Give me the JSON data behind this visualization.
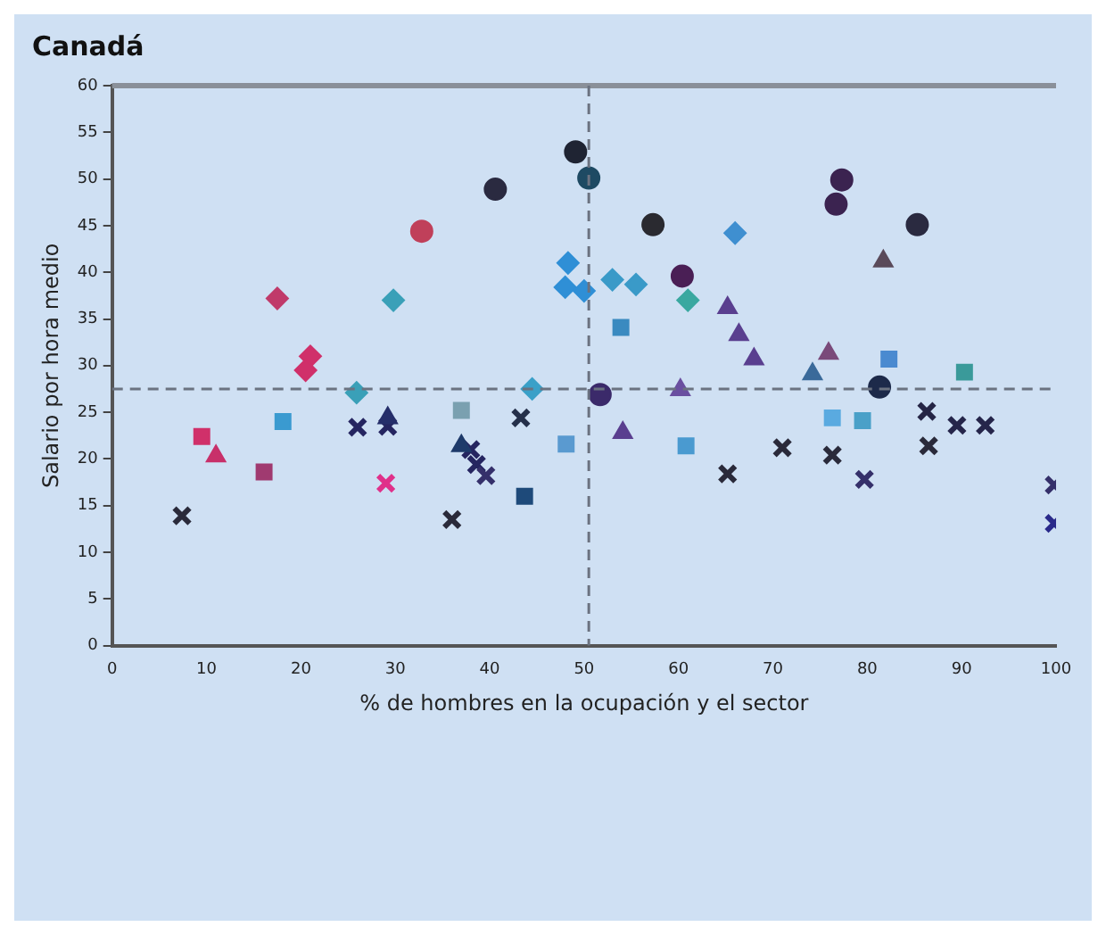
{
  "chart_data": {
    "type": "scatter",
    "title": "Canadá",
    "xlabel": "% de hombres en la ocupación y el sector",
    "ylabel": "Salario por hora medio",
    "xlim": [
      0,
      100
    ],
    "xticks": [
      0,
      10,
      20,
      30,
      40,
      50,
      60,
      70,
      80,
      90,
      100
    ],
    "ylim": [
      0,
      60
    ],
    "yticks": [
      0,
      5,
      10,
      15,
      20,
      25,
      30,
      35,
      40,
      45,
      50,
      55,
      60
    ],
    "grid": false,
    "legend": false,
    "ref_lines": [
      {
        "axis": "x",
        "value": 50.5,
        "color": "#6b7280",
        "line_style": "dashed"
      },
      {
        "axis": "y",
        "value": 27.5,
        "color": "#6b7280",
        "line_style": "dashed"
      }
    ],
    "series": [
      {
        "marker": "circle",
        "x": [
          40.6,
          32.8,
          49.1,
          50.5,
          57.3,
          77.3,
          76.7,
          85.3,
          60.4,
          51.7,
          81.3
        ],
        "values": [
          48.9,
          44.4,
          52.9,
          50.1,
          45.1,
          49.9,
          47.3,
          45.1,
          39.6,
          26.9,
          27.7
        ],
        "colors": [
          "#2a2a40",
          "#c0405a",
          "#1f2433",
          "#1e4a63",
          "#2a2a30",
          "#3b2350",
          "#3b2350",
          "#2a2a40",
          "#4a1f55",
          "#3b2a6a",
          "#1d2a4a"
        ]
      },
      {
        "marker": "diamond",
        "x": [
          17.5,
          29.8,
          25.9,
          44.5,
          48.3,
          48,
          50,
          53,
          55.5,
          66,
          61,
          21,
          20.5
        ],
        "values": [
          37.2,
          37,
          27.1,
          27.5,
          41,
          38.4,
          38,
          39.2,
          38.7,
          44.2,
          37,
          31,
          29.5
        ],
        "colors": [
          "#c03a6a",
          "#3aa0b8",
          "#3aa0b8",
          "#3aa0c8",
          "#2f8fd6",
          "#2f8fd6",
          "#2f8fd6",
          "#3a9ac8",
          "#3a9ac8",
          "#3f8fd0",
          "#3aa8a0",
          "#d0306a",
          "#d0306a"
        ]
      },
      {
        "marker": "triangle",
        "x": [
          11,
          29.2,
          37,
          54.1,
          60.2,
          65.2,
          66.4,
          68,
          75.9,
          74.2,
          81.7
        ],
        "values": [
          20.3,
          24.4,
          21.4,
          22.8,
          27.4,
          36.2,
          33.3,
          30.7,
          31.3,
          29.1,
          41.2
        ],
        "colors": [
          "#c8306a",
          "#252e6a",
          "#1e3a6a",
          "#5a3f8f",
          "#6a4fa0",
          "#5a3f8f",
          "#5a3f8f",
          "#5a3f8f",
          "#7a4a7a",
          "#3a6a9a",
          "#5a4a5a"
        ]
      },
      {
        "marker": "square",
        "x": [
          9.5,
          16.1,
          18.1,
          37,
          43.7,
          48.1,
          53.9,
          60.8,
          76.3,
          79.5,
          82.3,
          90.3
        ],
        "values": [
          22.4,
          18.6,
          24,
          25.2,
          16,
          21.6,
          34.1,
          21.4,
          24.4,
          24.1,
          30.7,
          29.3
        ],
        "colors": [
          "#d0306a",
          "#a03a70",
          "#3a9ad0",
          "#7aa0b0",
          "#1e4a7a",
          "#5a9ad0",
          "#3a8ac0",
          "#4a9ad0",
          "#5aaae0",
          "#4aa0c8",
          "#4a8ad0",
          "#3a9a9a"
        ]
      },
      {
        "marker": "cross",
        "x": [
          7.4,
          26,
          29.2,
          29,
          36,
          38.6,
          39.6,
          38,
          43.3,
          65.2,
          71,
          76.3,
          79.7,
          86.3,
          86.5,
          89.5,
          92.5,
          99.8,
          99.8
        ],
        "values": [
          13.9,
          23.4,
          23.5,
          17.4,
          13.5,
          19.4,
          18.2,
          21,
          24.4,
          18.4,
          21.2,
          20.4,
          17.8,
          25.1,
          21.4,
          23.6,
          23.6,
          17.2,
          13.1
        ],
        "colors": [
          "#2a2a3a",
          "#252560",
          "#252560",
          "#e0308a",
          "#2a2a3a",
          "#252560",
          "#35306a",
          "#252560",
          "#25304a",
          "#2a2a3a",
          "#2a2a3a",
          "#2a2a3a",
          "#35306a",
          "#252545",
          "#2a2a3a",
          "#25254a",
          "#25254a",
          "#35306a",
          "#2a2a8a"
        ]
      }
    ]
  }
}
